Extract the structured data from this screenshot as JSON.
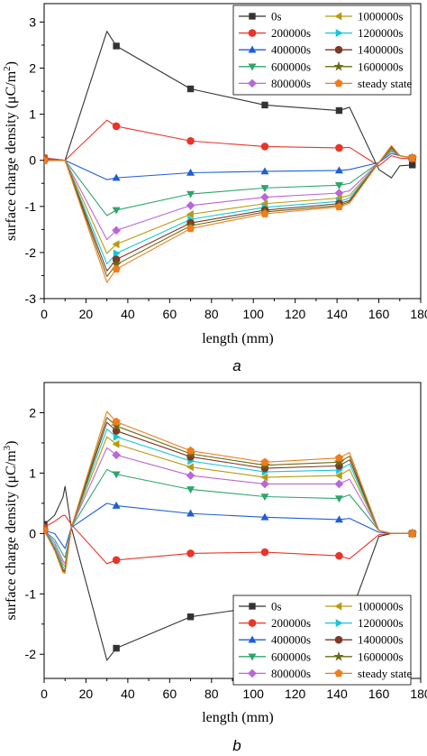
{
  "chart_data": [
    {
      "panel_label": "a",
      "type": "line",
      "xlabel": "length (mm)",
      "ylabel": "surface charge density (μC/m²)",
      "ylabel_main": "surface charge density (μC/m",
      "ylabel_sup": "2",
      "ylabel_end": ")",
      "xlim": [
        0,
        180
      ],
      "ylim": [
        -3,
        3.4
      ],
      "xticks": [
        0,
        20,
        40,
        60,
        80,
        100,
        120,
        140,
        160,
        180
      ],
      "yticks": [
        -3,
        -2,
        -1,
        0,
        1,
        2,
        3
      ],
      "grid": false,
      "legend_position": "top-right",
      "marker_x": [
        0,
        34.5,
        70,
        105.5,
        141,
        176
      ],
      "legend_order": [
        0,
        5,
        1,
        6,
        2,
        7,
        3,
        8,
        4,
        9
      ],
      "series": [
        {
          "name": "0s",
          "color": "#333333",
          "marker": "square",
          "x": [
            0,
            10,
            30,
            34.5,
            70,
            105.5,
            141,
            146,
            160,
            166,
            170,
            176
          ],
          "y": [
            0.05,
            0.0,
            2.8,
            2.48,
            1.55,
            1.2,
            1.08,
            1.15,
            -0.2,
            -0.38,
            -0.12,
            -0.1
          ]
        },
        {
          "name": "200000s",
          "color": "#e8352a",
          "marker": "circle",
          "x": [
            0,
            10,
            30,
            34.5,
            70,
            105.5,
            141,
            146,
            160,
            166,
            170,
            176
          ],
          "y": [
            0.05,
            0.0,
            0.87,
            0.74,
            0.42,
            0.3,
            0.27,
            0.28,
            -0.12,
            0.1,
            0.05,
            0.03
          ]
        },
        {
          "name": "400000s",
          "color": "#1f5ed6",
          "marker": "triangle-up",
          "x": [
            0,
            10,
            30,
            34.5,
            70,
            105.5,
            141,
            146,
            160,
            166,
            170,
            176
          ],
          "y": [
            0.02,
            0.0,
            -0.42,
            -0.38,
            -0.27,
            -0.24,
            -0.22,
            -0.2,
            -0.05,
            0.15,
            0.1,
            0.05
          ]
        },
        {
          "name": "600000s",
          "color": "#2ea66b",
          "marker": "triangle-down",
          "x": [
            0,
            10,
            30,
            34.5,
            70,
            105.5,
            141,
            146,
            160,
            166,
            170,
            176
          ],
          "y": [
            0.0,
            0.0,
            -1.2,
            -1.08,
            -0.73,
            -0.6,
            -0.54,
            -0.5,
            -0.05,
            0.2,
            0.1,
            0.05
          ]
        },
        {
          "name": "800000s",
          "color": "#b967d8",
          "marker": "diamond",
          "x": [
            0,
            10,
            30,
            34.5,
            70,
            105.5,
            141,
            146,
            160,
            166,
            170,
            176
          ],
          "y": [
            0.0,
            0.0,
            -1.72,
            -1.52,
            -0.98,
            -0.8,
            -0.71,
            -0.66,
            -0.05,
            0.22,
            0.1,
            0.05
          ]
        },
        {
          "name": "1000000s",
          "color": "#b89a10",
          "marker": "triangle-left",
          "x": [
            0,
            10,
            30,
            34.5,
            70,
            105.5,
            141,
            146,
            160,
            166,
            170,
            176
          ],
          "y": [
            0.0,
            0.0,
            -2.02,
            -1.82,
            -1.17,
            -0.94,
            -0.82,
            -0.76,
            -0.05,
            0.24,
            0.1,
            0.05
          ]
        },
        {
          "name": "1200000s",
          "color": "#17c6d9",
          "marker": "triangle-right",
          "x": [
            0,
            10,
            30,
            34.5,
            70,
            105.5,
            141,
            146,
            160,
            166,
            170,
            176
          ],
          "y": [
            0.0,
            0.0,
            -2.25,
            -2.02,
            -1.28,
            -1.02,
            -0.89,
            -0.82,
            -0.05,
            0.26,
            0.1,
            0.05
          ]
        },
        {
          "name": "1400000s",
          "color": "#7b3a28",
          "marker": "hexagon",
          "x": [
            0,
            10,
            30,
            34.5,
            70,
            105.5,
            141,
            146,
            160,
            166,
            170,
            176
          ],
          "y": [
            0.0,
            0.0,
            -2.4,
            -2.15,
            -1.36,
            -1.08,
            -0.94,
            -0.87,
            -0.05,
            0.28,
            0.1,
            0.05
          ]
        },
        {
          "name": "1600000s",
          "color": "#6b6b12",
          "marker": "star",
          "x": [
            0,
            10,
            30,
            34.5,
            70,
            105.5,
            141,
            146,
            160,
            166,
            170,
            176
          ],
          "y": [
            0.0,
            0.0,
            -2.52,
            -2.26,
            -1.42,
            -1.12,
            -0.98,
            -0.9,
            -0.05,
            0.3,
            0.1,
            0.05
          ]
        },
        {
          "name": "steady state",
          "color": "#f07c1a",
          "marker": "pentagon",
          "x": [
            0,
            10,
            30,
            34.5,
            70,
            105.5,
            141,
            146,
            160,
            166,
            170,
            176
          ],
          "y": [
            0.0,
            0.0,
            -2.65,
            -2.36,
            -1.48,
            -1.16,
            -1.01,
            -0.93,
            -0.05,
            0.32,
            0.1,
            0.05
          ]
        }
      ]
    },
    {
      "panel_label": "b",
      "type": "line",
      "xlabel": "length (mm)",
      "ylabel": "surface charge density (μC/m³)",
      "ylabel_main": "surface charge density (μC/m",
      "ylabel_sup": "3",
      "ylabel_end": ")",
      "xlim": [
        0,
        180
      ],
      "ylim": [
        -2.4,
        2.5
      ],
      "xticks": [
        0,
        20,
        40,
        60,
        80,
        100,
        120,
        140,
        160,
        180
      ],
      "yticks": [
        -2,
        -1,
        0,
        1,
        2
      ],
      "grid": false,
      "legend_position": "bottom-right",
      "marker_x": [
        0,
        34.5,
        70,
        105.5,
        141,
        176
      ],
      "legend_order": [
        0,
        5,
        1,
        6,
        2,
        7,
        3,
        8,
        4,
        9
      ],
      "series": [
        {
          "name": "0s",
          "color": "#333333",
          "marker": "square",
          "x": [
            0,
            5,
            9,
            10,
            13,
            30,
            34.5,
            70,
            105.5,
            141,
            146,
            160,
            166,
            176
          ],
          "y": [
            0.15,
            0.3,
            0.6,
            0.78,
            0.1,
            -2.1,
            -1.9,
            -1.38,
            -1.2,
            -1.3,
            -1.38,
            -0.05,
            0.0,
            0.0
          ]
        },
        {
          "name": "200000s",
          "color": "#e8352a",
          "marker": "circle",
          "x": [
            0,
            5,
            9,
            10,
            13,
            30,
            34.5,
            70,
            105.5,
            141,
            146,
            160,
            166,
            176
          ],
          "y": [
            0.1,
            0.2,
            0.3,
            0.3,
            0.15,
            -0.5,
            -0.44,
            -0.33,
            -0.31,
            -0.37,
            -0.42,
            -0.02,
            0.0,
            0.0
          ]
        },
        {
          "name": "400000s",
          "color": "#1f5ed6",
          "marker": "triangle-up",
          "x": [
            0,
            5,
            9,
            10,
            13,
            30,
            34.5,
            70,
            105.5,
            141,
            146,
            160,
            166,
            176
          ],
          "y": [
            0.05,
            0.0,
            -0.2,
            -0.25,
            0.1,
            0.5,
            0.46,
            0.33,
            0.27,
            0.23,
            0.25,
            0.02,
            0.0,
            0.0
          ]
        },
        {
          "name": "600000s",
          "color": "#2ea66b",
          "marker": "triangle-down",
          "x": [
            0,
            5,
            9,
            10,
            13,
            30,
            34.5,
            70,
            105.5,
            141,
            146,
            160,
            166,
            176
          ],
          "y": [
            0.05,
            -0.1,
            -0.35,
            -0.4,
            0.1,
            1.06,
            0.98,
            0.73,
            0.61,
            0.58,
            0.64,
            0.05,
            0.0,
            0.0
          ]
        },
        {
          "name": "800000s",
          "color": "#b967d8",
          "marker": "diamond",
          "x": [
            0,
            5,
            9,
            10,
            13,
            30,
            34.5,
            70,
            105.5,
            141,
            146,
            160,
            166,
            176
          ],
          "y": [
            0.05,
            -0.15,
            -0.45,
            -0.5,
            0.1,
            1.42,
            1.3,
            0.96,
            0.82,
            0.82,
            0.9,
            0.05,
            0.0,
            0.0
          ]
        },
        {
          "name": "1000000s",
          "color": "#b89a10",
          "marker": "triangle-left",
          "x": [
            0,
            5,
            9,
            10,
            13,
            30,
            34.5,
            70,
            105.5,
            141,
            146,
            160,
            166,
            176
          ],
          "y": [
            0.05,
            -0.2,
            -0.5,
            -0.55,
            0.1,
            1.6,
            1.48,
            1.1,
            0.93,
            0.96,
            1.06,
            0.05,
            0.0,
            0.0
          ]
        },
        {
          "name": "1200000s",
          "color": "#17c6d9",
          "marker": "triangle-right",
          "x": [
            0,
            5,
            9,
            10,
            13,
            30,
            34.5,
            70,
            105.5,
            141,
            146,
            160,
            166,
            176
          ],
          "y": [
            0.05,
            -0.2,
            -0.55,
            -0.6,
            0.1,
            1.73,
            1.6,
            1.2,
            1.02,
            1.05,
            1.15,
            0.05,
            0.0,
            0.0
          ]
        },
        {
          "name": "1400000s",
          "color": "#7b3a28",
          "marker": "hexagon",
          "x": [
            0,
            5,
            9,
            10,
            13,
            30,
            34.5,
            70,
            105.5,
            141,
            146,
            160,
            166,
            176
          ],
          "y": [
            0.05,
            -0.25,
            -0.6,
            -0.62,
            0.1,
            1.84,
            1.7,
            1.27,
            1.08,
            1.12,
            1.22,
            0.05,
            0.0,
            0.0
          ]
        },
        {
          "name": "1600000s",
          "color": "#6b6b12",
          "marker": "star",
          "x": [
            0,
            5,
            9,
            10,
            13,
            30,
            34.5,
            70,
            105.5,
            141,
            146,
            160,
            166,
            176
          ],
          "y": [
            0.05,
            -0.25,
            -0.62,
            -0.64,
            0.1,
            1.92,
            1.78,
            1.32,
            1.13,
            1.18,
            1.28,
            0.05,
            0.0,
            0.0
          ]
        },
        {
          "name": "steady state",
          "color": "#f07c1a",
          "marker": "pentagon",
          "x": [
            0,
            5,
            9,
            10,
            13,
            30,
            34.5,
            70,
            105.5,
            141,
            146,
            160,
            166,
            176
          ],
          "y": [
            0.05,
            -0.28,
            -0.65,
            -0.66,
            0.1,
            2.02,
            1.85,
            1.37,
            1.18,
            1.25,
            1.34,
            0.05,
            0.0,
            0.0
          ]
        }
      ]
    }
  ]
}
